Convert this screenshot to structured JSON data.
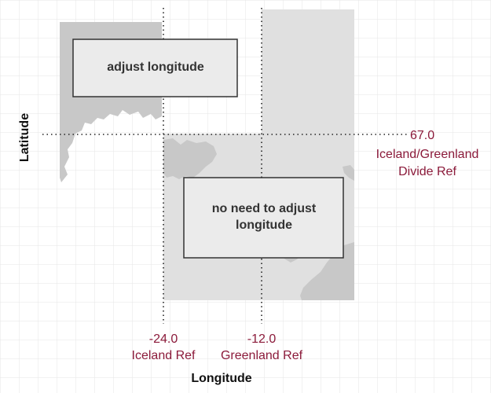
{
  "axes": {
    "xlabel": "Longitude",
    "ylabel": "Latitude"
  },
  "references": {
    "iceland": {
      "value": "-24.0",
      "label": "Iceland Ref"
    },
    "greenland": {
      "value": "-12.0",
      "label": "Greenland Ref"
    },
    "divide": {
      "value": "67.0",
      "label_line1": "Iceland/Greenland",
      "label_line2": "Divide Ref"
    }
  },
  "boxes": {
    "adjust": {
      "line1": "adjust longitude"
    },
    "no_adjust": {
      "line1": "no need to adjust",
      "line2": "longitude"
    }
  },
  "colors": {
    "ref_text": "#8b1a3a",
    "land": "#c8c8c8",
    "panel": "#e0e0e0",
    "grid": "#e6e6e6"
  }
}
